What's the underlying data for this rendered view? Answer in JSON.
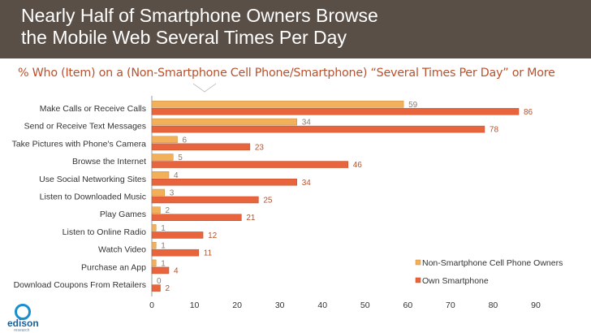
{
  "slide": {
    "title_line1": "Nearly Half of Smartphone Owners Browse",
    "title_line2": "the Mobile Web Several Times Per Day",
    "subtitle": "% Who (Item) on a (Non-Smartphone Cell Phone/Smartphone) “Several Times Per Day” or More",
    "logo_text": "edison",
    "logo_sub": "research"
  },
  "colors": {
    "header_bg": "#5a4f47",
    "accent": "#b8512c",
    "series_non_smartphone": "#f3b05a",
    "series_smartphone": "#e8643c"
  },
  "chart_data": {
    "type": "bar",
    "orientation": "horizontal",
    "categories": [
      "Make Calls or Receive Calls",
      "Send or Receive Text Messages",
      "Take Pictures with Phone's Camera",
      "Browse the Internet",
      "Use Social Networking Sites",
      "Listen to Downloaded Music",
      "Play Games",
      "Listen to Online Radio",
      "Watch Video",
      "Purchase an App",
      "Download Coupons From Retailers"
    ],
    "series": [
      {
        "name": "Non-Smartphone Cell Phone Owners",
        "values": [
          59,
          34,
          6,
          5,
          4,
          3,
          2,
          1,
          1,
          1,
          0
        ]
      },
      {
        "name": "Own Smartphone",
        "values": [
          86,
          78,
          23,
          46,
          34,
          25,
          21,
          12,
          11,
          4,
          2
        ]
      }
    ],
    "xlim": [
      0,
      90
    ],
    "x_ticks": [
      0,
      10,
      20,
      30,
      40,
      50,
      60,
      70,
      80,
      90
    ],
    "legend_position": "bottom-right",
    "grid": false,
    "data_labels": true
  }
}
